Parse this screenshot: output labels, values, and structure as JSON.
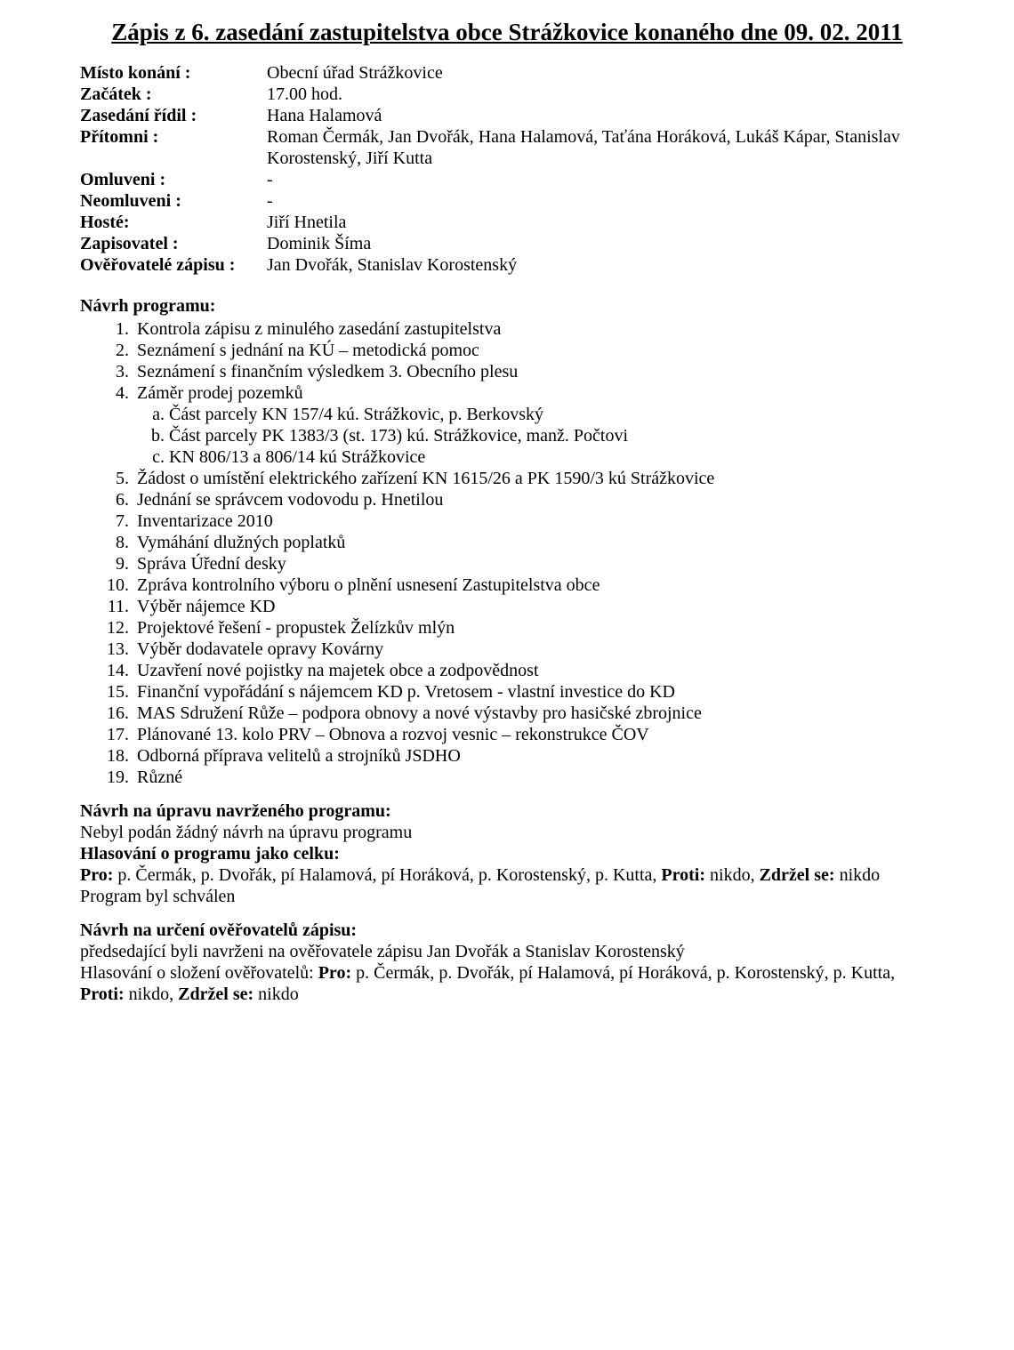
{
  "title": "Zápis z 6. zasedání zastupitelstva obce Strážkovice konaného dne 09. 02. 2011",
  "meta": {
    "misto_label": "Místo konání :",
    "misto_value": "Obecní úřad Strážkovice",
    "zacatek_label": "Začátek :",
    "zacatek_value": "17.00 hod.",
    "zasedani_ridil_label": "Zasedání řídil :",
    "zasedani_ridil_value": "Hana Halamová",
    "pritomni_label": "Přítomni :",
    "pritomni_value": "Roman Čermák, Jan Dvořák, Hana Halamová, Taťána Horáková, Lukáš Kápar, Stanislav Korostenský, Jiří Kutta",
    "omluveni_label": "Omluveni :",
    "omluveni_value": "-",
    "neomluveni_label": "Neomluveni :",
    "neomluveni_value": "-",
    "hoste_label": "Hosté:",
    "hoste_value": "Jiří Hnetila",
    "zapisovatel_label": "Zapisovatel :",
    "zapisovatel_value": "Dominik Šíma",
    "overovatele_label": "Ověřovatelé zápisu :",
    "overovatele_value": "Jan Dvořák, Stanislav Korostenský"
  },
  "program_head": "Návrh programu:",
  "program": [
    "Kontrola zápisu z minulého zasedání zastupitelstva",
    "Seznámení s jednání na KÚ – metodická pomoc",
    "Seznámení s finančním výsledkem 3. Obecního plesu",
    "Záměr prodej pozemků",
    "Žádost o umístění elektrického zařízení KN 1615/26 a PK 1590/3 kú Strážkovice",
    "Jednání se správcem vodovodu p. Hnetilou",
    "Inventarizace 2010",
    "Vymáhání dlužných poplatků",
    "Správa Úřední desky",
    "Zpráva kontrolního výboru o plnění usnesení Zastupitelstva obce",
    "Výběr nájemce KD",
    "Projektové řešení - propustek  Želízkův mlýn",
    "Výběr dodavatele opravy Kovárny",
    "Uzavření nové pojistky na majetek obce a zodpovědnost",
    "Finanční vypořádání s nájemcem KD p. Vretosem - vlastní  investice do KD",
    "MAS Sdružení Růže – podpora obnovy a nové výstavby pro hasičské zbrojnice",
    "Plánované 13. kolo PRV – Obnova a rozvoj vesnic – rekonstrukce ČOV",
    "Odborná příprava velitelů a strojníků JSDHO",
    "Různé"
  ],
  "sub4": [
    "Část parcely KN 157/4 kú. Strážkovic, p. Berkovský",
    "Část parcely PK 1383/3 (st. 173) kú. Strážkovice, manž. Počtovi",
    "KN 806/13 a 806/14 kú Strážkovice"
  ],
  "sec_uprava": {
    "head": "Návrh na úpravu navrženého programu:",
    "line1": "Nebyl podán žádný návrh na úpravu programu",
    "head2": "Hlasování o programu jako celku:",
    "pro_label": "Pro: ",
    "pro_text": "p. Čermák, p. Dvořák, pí Halamová, pí Horáková, p. Korostenský, p. Kutta, ",
    "proti_label": "Proti:",
    "proti_text": " nikdo, ",
    "zdrzel_label": "Zdržel se: ",
    "zdrzel_text": "nikdo",
    "line_last": "Program byl schválen"
  },
  "sec_over": {
    "head": "Návrh na určení ověřovatelů zápisu:",
    "line1": "předsedající byli navrženi na ověřovatele zápisu Jan Dvořák a Stanislav Korostenský",
    "line2_prefix": "Hlasování o složení ověřovatelů: ",
    "pro_label": "Pro: ",
    "pro_text": "p. Čermák, p. Dvořák, pí Halamová, pí Horáková, p. Korostenský, p. Kutta, ",
    "proti_label": "Proti: ",
    "proti_text": "nikdo, ",
    "zdrzel_label": "Zdržel se: ",
    "zdrzel_text": "nikdo"
  }
}
